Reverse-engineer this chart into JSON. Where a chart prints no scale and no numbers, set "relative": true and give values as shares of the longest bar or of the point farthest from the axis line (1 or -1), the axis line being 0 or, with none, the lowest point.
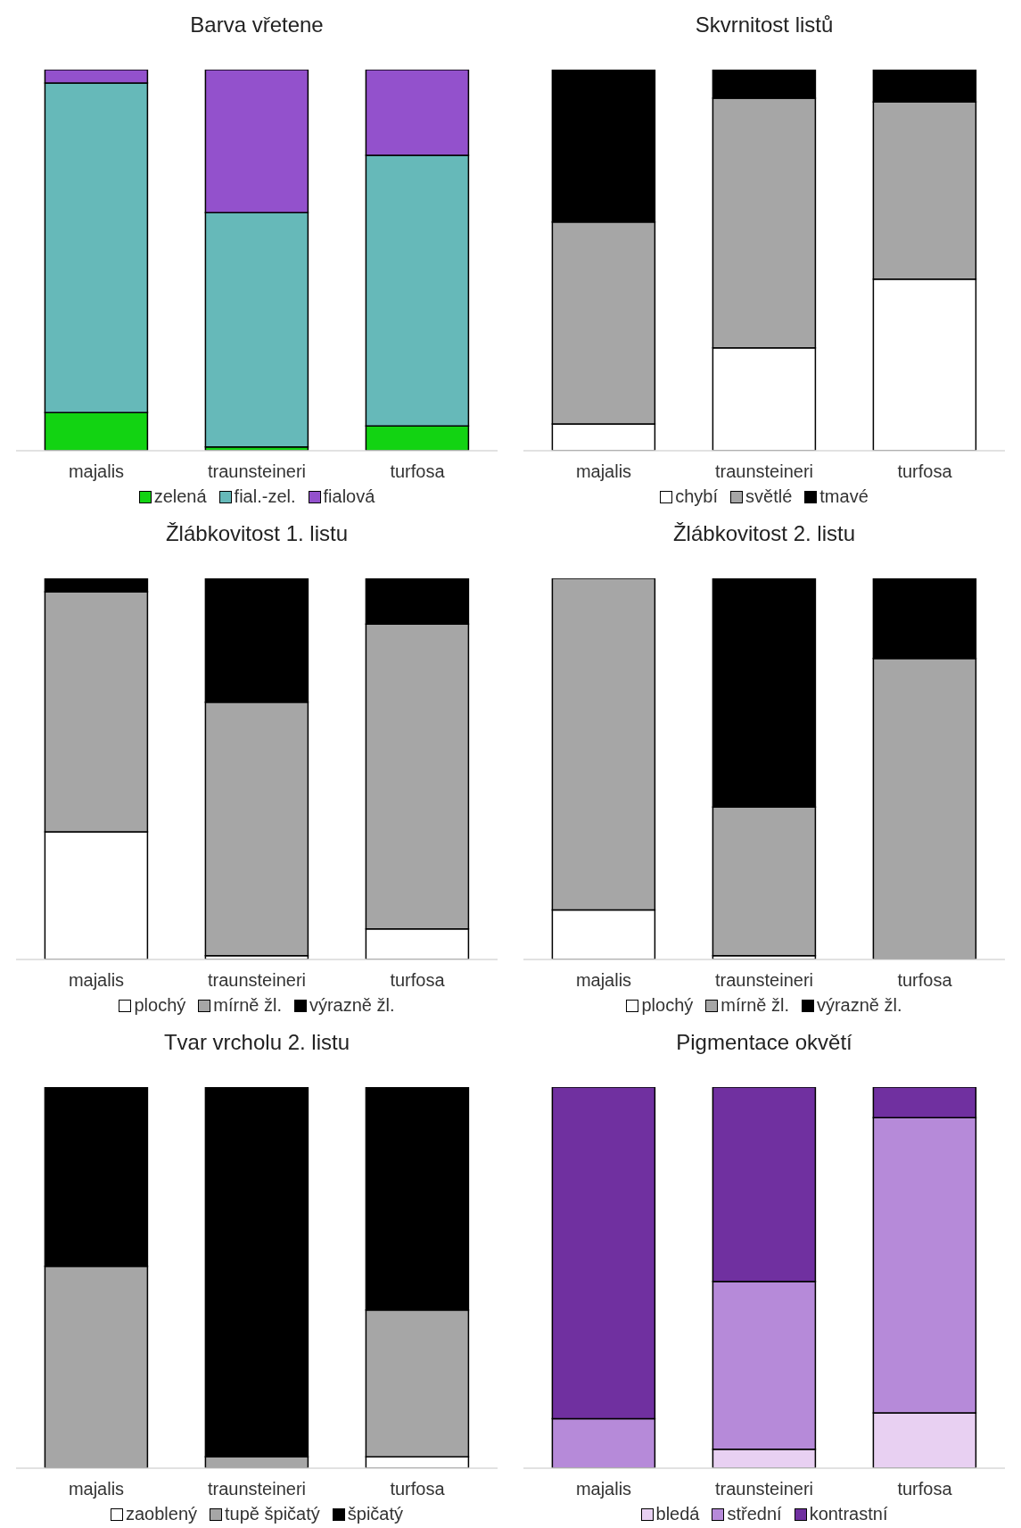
{
  "chart_data": [
    {
      "type": "bar",
      "title": "Barva vřetene",
      "categories": [
        "majalis",
        "traunsteineri",
        "turfosa"
      ],
      "stacked": true,
      "relative": true,
      "legend": "bottom",
      "series": [
        {
          "name": "zelená",
          "color": "#12d312",
          "values": [
            0.1,
            0.01,
            0.065
          ]
        },
        {
          "name": "fial.-zel.",
          "color": "#66b9b9",
          "values": [
            0.865,
            0.615,
            0.71
          ]
        },
        {
          "name": "fialová",
          "color": "#9351cc",
          "values": [
            0.035,
            0.375,
            0.225
          ]
        }
      ]
    },
    {
      "type": "bar",
      "title": "Skvrnitost listů",
      "categories": [
        "majalis",
        "traunsteineri",
        "turfosa"
      ],
      "stacked": true,
      "relative": true,
      "legend": "bottom",
      "series": [
        {
          "name": "chybí",
          "color": "#ffffff",
          "values": [
            0.07,
            0.27,
            0.45
          ]
        },
        {
          "name": "světlé",
          "color": "#a6a6a6",
          "values": [
            0.53,
            0.655,
            0.465
          ]
        },
        {
          "name": "tmavé",
          "color": "#000000",
          "values": [
            0.4,
            0.075,
            0.085
          ]
        }
      ]
    },
    {
      "type": "bar",
      "title": "Žlábkovitost 1. listu",
      "categories": [
        "majalis",
        "traunsteineri",
        "turfosa"
      ],
      "stacked": true,
      "relative": true,
      "legend": "bottom",
      "series": [
        {
          "name": "plochý",
          "color": "#ffffff",
          "values": [
            0.335,
            0.01,
            0.08
          ]
        },
        {
          "name": "mírně žl.",
          "color": "#a6a6a6",
          "values": [
            0.63,
            0.665,
            0.8
          ]
        },
        {
          "name": "výrazně žl.",
          "color": "#000000",
          "values": [
            0.035,
            0.325,
            0.12
          ]
        }
      ]
    },
    {
      "type": "bar",
      "title": "Žlábkovitost 2. listu",
      "categories": [
        "majalis",
        "traunsteineri",
        "turfosa"
      ],
      "stacked": true,
      "relative": true,
      "legend": "bottom",
      "series": [
        {
          "name": "plochý",
          "color": "#ffffff",
          "values": [
            0.13,
            0.01,
            0
          ]
        },
        {
          "name": "mírně žl.",
          "color": "#a6a6a6",
          "values": [
            0.87,
            0.39,
            0.79
          ]
        },
        {
          "name": "výrazně žl.",
          "color": "#000000",
          "values": [
            0,
            0.6,
            0.21
          ]
        }
      ]
    },
    {
      "type": "bar",
      "title": "Tvar vrcholu 2. listu",
      "categories": [
        "majalis",
        "traunsteineri",
        "turfosa"
      ],
      "stacked": true,
      "relative": true,
      "legend": "bottom",
      "series": [
        {
          "name": "zaoblený",
          "color": "#ffffff",
          "values": [
            0,
            0,
            0.03
          ]
        },
        {
          "name": "tupě špičatý",
          "color": "#a6a6a6",
          "values": [
            0.53,
            0.03,
            0.385
          ]
        },
        {
          "name": "špičatý",
          "color": "#000000",
          "values": [
            0.47,
            0.97,
            0.585
          ]
        }
      ]
    },
    {
      "type": "bar",
      "title": "Pigmentace okvětí",
      "categories": [
        "majalis",
        "traunsteineri",
        "turfosa"
      ],
      "stacked": true,
      "relative": true,
      "legend": "bottom",
      "series": [
        {
          "name": "bledá",
          "color": "#e8d0f2",
          "values": [
            0,
            0.05,
            0.145
          ]
        },
        {
          "name": "střední",
          "color": "#b68ad9",
          "values": [
            0.13,
            0.44,
            0.775
          ]
        },
        {
          "name": "kontrastní",
          "color": "#7030a0",
          "values": [
            0.87,
            0.51,
            0.08
          ]
        }
      ]
    }
  ]
}
